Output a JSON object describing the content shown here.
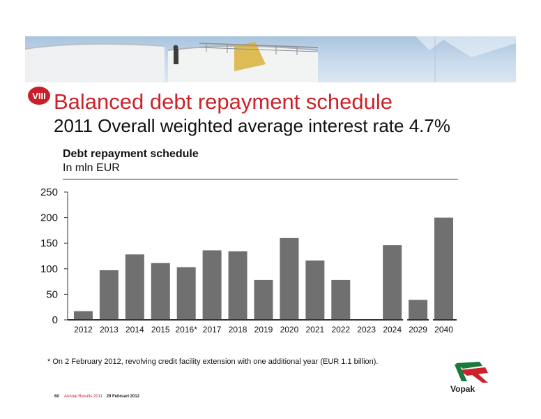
{
  "slide": {
    "badge": "VIII",
    "title": "Balanced debt repayment schedule",
    "subtitle": "2011 Overall weighted average interest rate 4.7%",
    "footnote": "* On 2 February 2012, revolving credit facility extension with one additional year (EUR 1.1 billion).",
    "footer": {
      "page_number": "60",
      "report": "Annual Results 2011",
      "date": "29 Februari 2012"
    },
    "logo_text": "Vopak",
    "colors": {
      "accent": "#cc2229",
      "bar": "#707070",
      "axis": "#333333"
    }
  },
  "chart_data": {
    "type": "bar",
    "title": "Debt repayment schedule",
    "subtitle": "In mln EUR",
    "categories": [
      "2012",
      "2013",
      "2014",
      "2015",
      "2016*",
      "2017",
      "2018",
      "2019",
      "2020",
      "2021",
      "2022",
      "2023",
      "2024",
      "2029",
      "2040"
    ],
    "values": [
      17,
      97,
      128,
      111,
      103,
      136,
      134,
      78,
      160,
      116,
      78,
      0,
      146,
      39,
      200
    ],
    "ylim": [
      0,
      250
    ],
    "yticks": [
      0,
      50,
      100,
      150,
      200,
      250
    ],
    "axis_breaks_after": [
      "2024",
      "2029"
    ],
    "grid": false,
    "legend": "none"
  }
}
